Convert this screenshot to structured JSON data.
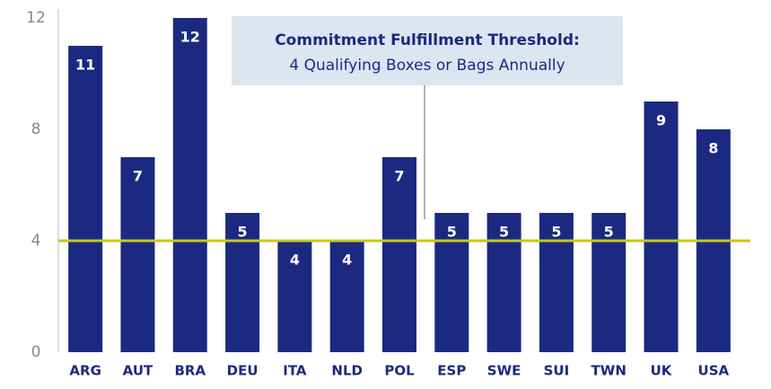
{
  "chart_data": {
    "type": "bar",
    "categories": [
      "ARG",
      "AUT",
      "BRA",
      "DEU",
      "ITA",
      "NLD",
      "POL",
      "ESP",
      "SWE",
      "SUI",
      "TWN",
      "UK",
      "USA"
    ],
    "values": [
      11,
      7,
      12,
      5,
      4,
      4,
      7,
      5,
      5,
      5,
      5,
      9,
      8
    ],
    "color": "#1b2a80",
    "ylim": [
      0,
      12
    ],
    "yticks": [
      0,
      4,
      8,
      12
    ],
    "grid": false,
    "threshold": 4,
    "threshold_color": "#c8c814",
    "annotation": {
      "title": "Commitment Fulfillment Threshold:",
      "text": "4 Qualifying Boxes or Bags Annually"
    }
  }
}
